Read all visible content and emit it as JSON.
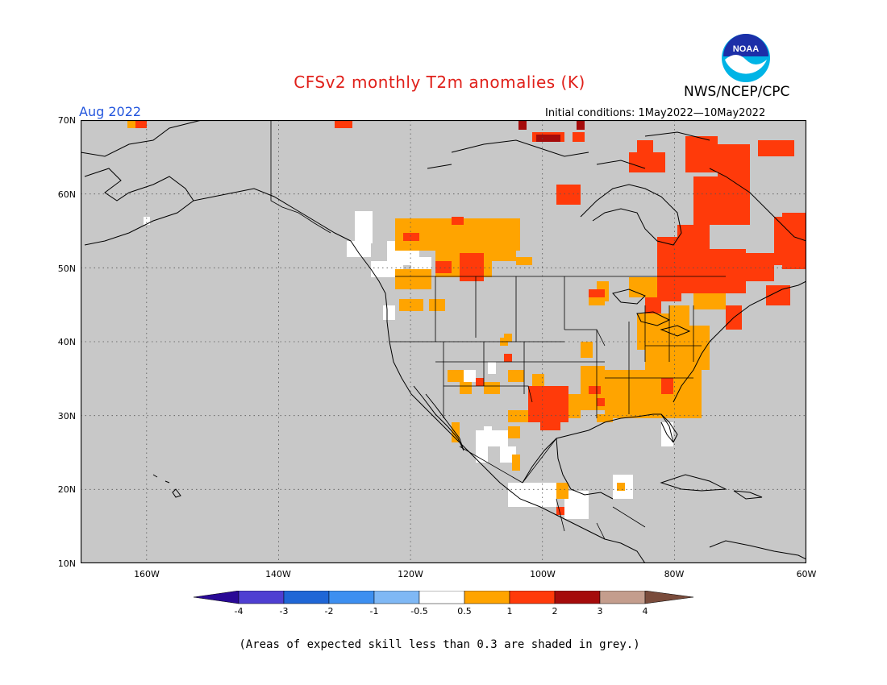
{
  "header": {
    "title": "CFSv2 monthly T2m anomalies (K)",
    "agency": "NWS/NCEP/CPC",
    "logo_text": "NOAA",
    "target_month": "Aug 2022",
    "initial_conditions": "Initial conditions: 1May2022—10May2022"
  },
  "map": {
    "region": "North America",
    "lat_range": [
      10,
      70
    ],
    "lon_range": [
      -170,
      -60
    ],
    "lat_labels": [
      "70N",
      "60N",
      "50N",
      "40N",
      "30N",
      "20N",
      "10N"
    ],
    "lon_labels": [
      "160W",
      "140W",
      "120W",
      "100W",
      "80W",
      "60W"
    ],
    "background_color": "#c8c8c8",
    "land_line_color": "#000000"
  },
  "colorbar": {
    "tick_labels": [
      "-4",
      "-3",
      "-2",
      "-1",
      "-0.5",
      "0.5",
      "1",
      "2",
      "3",
      "4"
    ],
    "colors": [
      "#2a0a96",
      "#4f3fd2",
      "#1f66d6",
      "#3d8ff0",
      "#7fb8f5",
      "#ffffff",
      "#ffa400",
      "#ff3a0a",
      "#a50b0b",
      "#c49d8d",
      "#7a4c3c"
    ]
  },
  "anomaly_colors": {
    "near_normal": "#ffffff",
    "warm_0_5_to_1": "#ffa400",
    "warm_1_to_2": "#ff3a0a",
    "warm_2_to_3": "#a50b0b"
  },
  "footer": {
    "note": "(Areas of expected skill less than 0.3 are shaded in grey.)"
  }
}
